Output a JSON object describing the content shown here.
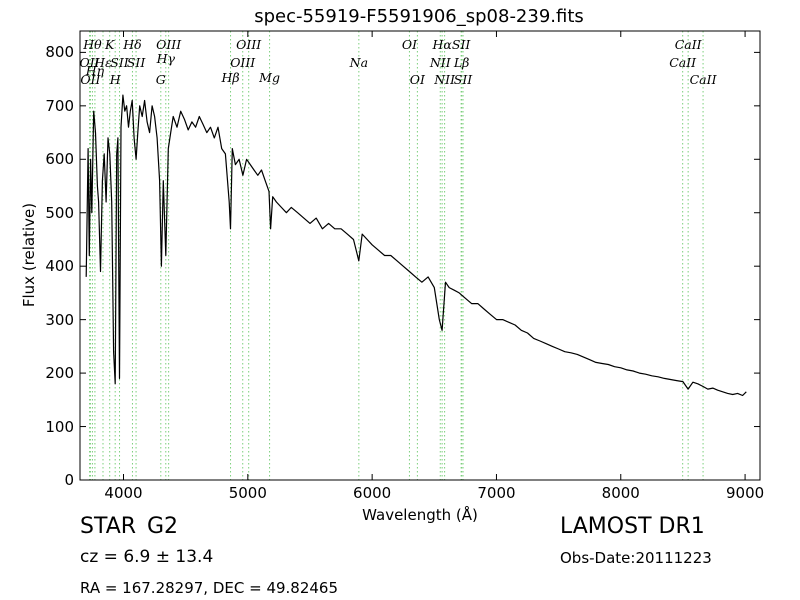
{
  "chart_data": {
    "type": "line",
    "title": "spec-55919-F5591906_sp08-239.fits",
    "xlabel": "Wavelength (Å)",
    "ylabel": "Flux (relative)",
    "xlim": [
      3650,
      9120
    ],
    "ylim": [
      0,
      840
    ],
    "xticks": [
      4000,
      5000,
      6000,
      7000,
      8000,
      9000
    ],
    "yticks": [
      0,
      100,
      200,
      300,
      400,
      500,
      600,
      700,
      800
    ],
    "grid": false,
    "line_color": "#000000",
    "marker_color": "#7ccf7c",
    "series": [
      {
        "x": [
          3700,
          3715,
          3725,
          3735,
          3745,
          3760,
          3775,
          3790,
          3800,
          3815,
          3830,
          3845,
          3860,
          3875,
          3890,
          3905,
          3920,
          3933,
          3945,
          3955,
          3968,
          3980,
          3995,
          4010,
          4025,
          4040,
          4055,
          4070,
          4085,
          4101,
          4115,
          4130,
          4150,
          4170,
          4190,
          4210,
          4230,
          4250,
          4270,
          4290,
          4305,
          4320,
          4340,
          4360,
          4380,
          4400,
          4430,
          4460,
          4490,
          4520,
          4550,
          4580,
          4610,
          4640,
          4670,
          4700,
          4730,
          4760,
          4790,
          4820,
          4850,
          4861,
          4875,
          4900,
          4930,
          4960,
          4990,
          5020,
          5050,
          5080,
          5110,
          5140,
          5170,
          5183,
          5200,
          5230,
          5270,
          5310,
          5350,
          5400,
          5450,
          5500,
          5550,
          5600,
          5650,
          5700,
          5750,
          5800,
          5850,
          5893,
          5920,
          5960,
          6000,
          6050,
          6100,
          6150,
          6200,
          6250,
          6300,
          6350,
          6400,
          6450,
          6500,
          6540,
          6563,
          6590,
          6620,
          6660,
          6700,
          6750,
          6800,
          6850,
          6900,
          6950,
          7000,
          7050,
          7100,
          7150,
          7200,
          7250,
          7300,
          7350,
          7400,
          7450,
          7500,
          7550,
          7600,
          7650,
          7700,
          7750,
          7800,
          7850,
          7900,
          7950,
          8000,
          8050,
          8100,
          8150,
          8200,
          8250,
          8300,
          8350,
          8400,
          8450,
          8500,
          8542,
          8580,
          8620,
          8662,
          8700,
          8740,
          8780,
          8820,
          8860,
          8900,
          8940,
          8980,
          9010
        ],
        "y": [
          380,
          620,
          420,
          600,
          500,
          690,
          650,
          550,
          520,
          390,
          560,
          610,
          520,
          640,
          610,
          520,
          240,
          180,
          610,
          640,
          190,
          660,
          720,
          690,
          700,
          660,
          690,
          710,
          640,
          600,
          650,
          700,
          680,
          710,
          670,
          650,
          700,
          680,
          640,
          560,
          400,
          560,
          420,
          620,
          650,
          680,
          660,
          690,
          675,
          655,
          670,
          660,
          680,
          665,
          650,
          660,
          640,
          660,
          620,
          610,
          520,
          470,
          620,
          590,
          600,
          570,
          600,
          590,
          580,
          570,
          580,
          560,
          540,
          470,
          530,
          520,
          510,
          500,
          510,
          500,
          490,
          480,
          490,
          470,
          480,
          470,
          470,
          460,
          450,
          410,
          460,
          450,
          440,
          430,
          420,
          420,
          410,
          400,
          390,
          380,
          370,
          380,
          360,
          300,
          280,
          370,
          360,
          355,
          350,
          340,
          330,
          330,
          320,
          310,
          300,
          300,
          295,
          290,
          280,
          275,
          265,
          260,
          255,
          250,
          245,
          240,
          238,
          235,
          230,
          225,
          220,
          218,
          216,
          212,
          210,
          206,
          204,
          200,
          198,
          195,
          193,
          190,
          188,
          186,
          184,
          170,
          183,
          180,
          175,
          170,
          172,
          168,
          165,
          162,
          160,
          162,
          158,
          165
        ]
      }
    ],
    "line_markers": [
      {
        "wl": 3727,
        "label": "OII",
        "row": 1
      },
      {
        "wl": 3734,
        "label": "OII",
        "row": 2
      },
      {
        "wl": 3750,
        "label": "Hθ",
        "row": 0
      },
      {
        "wl": 3770,
        "label": "Hη",
        "row": 1.5
      },
      {
        "wl": 3835,
        "label": "Hε",
        "row": 1
      },
      {
        "wl": 3889,
        "label": "K",
        "row": 0
      },
      {
        "wl": 3933,
        "label": "H",
        "row": 2
      },
      {
        "wl": 3968,
        "label": "SII",
        "row": 1
      },
      {
        "wl": 4072,
        "label": "Hδ",
        "row": 0
      },
      {
        "wl": 4101,
        "label": "SII",
        "row": 1
      },
      {
        "wl": 4300,
        "label": "G",
        "row": 2
      },
      {
        "wl": 4340,
        "label": "Hγ",
        "row": 0.8
      },
      {
        "wl": 4363,
        "label": "OIII",
        "row": 0
      },
      {
        "wl": 4861,
        "label": "Hβ",
        "row": 1.9
      },
      {
        "wl": 4959,
        "label": "OIII",
        "row": 1
      },
      {
        "wl": 5007,
        "label": "OIII",
        "row": 0
      },
      {
        "wl": 5175,
        "label": "Mg",
        "row": 1.9
      },
      {
        "wl": 5893,
        "label": "Na",
        "row": 1
      },
      {
        "wl": 6300,
        "label": "OI",
        "row": 0
      },
      {
        "wl": 6364,
        "label": "OI",
        "row": 2
      },
      {
        "wl": 6548,
        "label": "NII",
        "row": 1
      },
      {
        "wl": 6563,
        "label": "Hα",
        "row": 0
      },
      {
        "wl": 6583,
        "label": "NII",
        "row": 2
      },
      {
        "wl": 6716,
        "label": "SII",
        "row": 0
      },
      {
        "wl": 6720,
        "label": "Lβ",
        "row": 1
      },
      {
        "wl": 6731,
        "label": "SII",
        "row": 2
      },
      {
        "wl": 8498,
        "label": "CaII",
        "row": 1
      },
      {
        "wl": 8542,
        "label": "CaII",
        "row": 0
      },
      {
        "wl": 8662,
        "label": "CaII",
        "row": 2
      }
    ]
  },
  "footer": {
    "class_label": "STAR",
    "subclass": "G2",
    "survey": "LAMOST DR1",
    "cz_text": "cz = 6.9 ± 13.4",
    "obs_date": "Obs-Date:20111223",
    "coords": "RA = 167.28297, DEC = 49.82465"
  }
}
